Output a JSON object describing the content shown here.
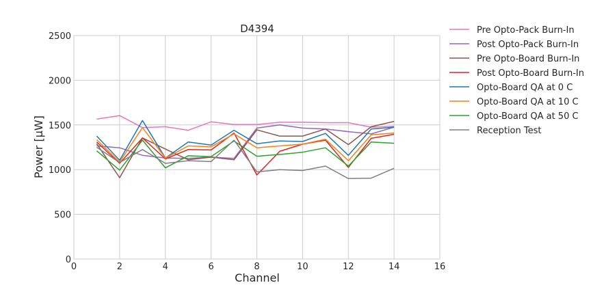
{
  "chart_data": {
    "type": "line",
    "title": "D4394",
    "xlabel": "Channel",
    "ylabel": "Power [μW]",
    "xlim": [
      0,
      16
    ],
    "ylim": [
      0,
      2500
    ],
    "xticks": [
      0,
      2,
      4,
      6,
      8,
      10,
      12,
      14,
      16
    ],
    "yticks": [
      0,
      500,
      1000,
      1500,
      2000,
      2500
    ],
    "grid": true,
    "legend_placement": "outside-right",
    "x": [
      1,
      2,
      3,
      4,
      5,
      6,
      7,
      8,
      9,
      10,
      11,
      12,
      13,
      14
    ],
    "series": [
      {
        "name": "Pre Opto-Pack Burn-In",
        "color": "#e377c2",
        "values": [
          1565,
          1605,
          1470,
          1480,
          1440,
          1535,
          1505,
          1505,
          1530,
          1530,
          1525,
          1525,
          1475,
          1485
        ]
      },
      {
        "name": "Post Opto-Pack Burn-In",
        "color": "#9467bd",
        "values": [
          1265,
          1245,
          1160,
          1130,
          1125,
          1140,
          1125,
          1465,
          1500,
          1465,
          1455,
          1425,
          1400,
          1475
        ]
      },
      {
        "name": "Pre Opto-Board Burn-In",
        "color": "#8c564b",
        "values": [
          1290,
          910,
          1355,
          1230,
          1110,
          1140,
          1110,
          1445,
          1375,
          1375,
          1455,
          1280,
          1480,
          1540
        ]
      },
      {
        "name": "Post Opto-Board Burn-In",
        "color": "#d62728",
        "values": [
          1310,
          1070,
          1355,
          1120,
          1225,
          1220,
          1410,
          940,
          1205,
          1285,
          1330,
          1025,
          1350,
          1395
        ]
      },
      {
        "name": "Opto-Board QA at 0 C",
        "color": "#1f77b4",
        "values": [
          1375,
          1105,
          1550,
          1130,
          1310,
          1275,
          1440,
          1290,
          1320,
          1315,
          1405,
          1160,
          1455,
          1475
        ]
      },
      {
        "name": "Opto-Board QA at 10 C",
        "color": "#ff7f0e",
        "values": [
          1335,
          1085,
          1470,
          1130,
          1265,
          1255,
          1400,
          1245,
          1265,
          1285,
          1340,
          1100,
          1390,
          1410
        ]
      },
      {
        "name": "Opto-Board QA at 50 C",
        "color": "#2ca02c",
        "values": [
          1210,
          995,
          1330,
          1020,
          1155,
          1145,
          1320,
          1150,
          1170,
          1195,
          1245,
          1040,
          1310,
          1295
        ]
      },
      {
        "name": "Reception Test",
        "color": "#7f7f7f",
        "values": [
          1250,
          1080,
          1225,
          1070,
          1100,
          1090,
          1330,
          975,
          1000,
          990,
          1040,
          900,
          905,
          1015
        ]
      }
    ]
  }
}
